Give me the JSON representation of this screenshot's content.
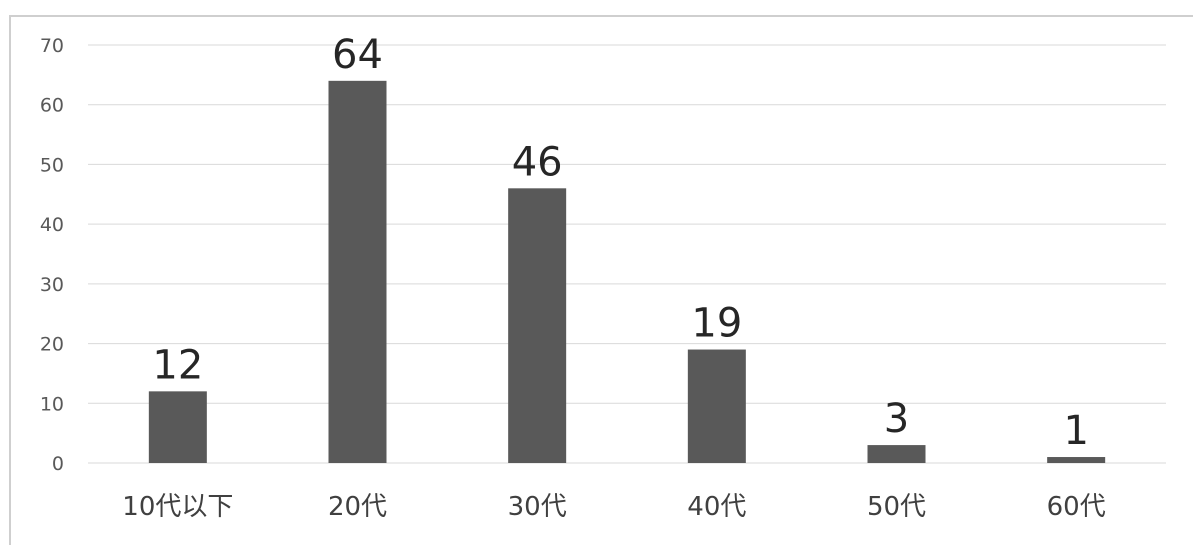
{
  "chart_data": {
    "type": "bar",
    "categories": [
      "10代以下",
      "20代",
      "30代",
      "40代",
      "50代",
      "60代"
    ],
    "values": [
      12,
      64,
      46,
      19,
      3,
      1
    ],
    "data_labels": [
      "12",
      "64",
      "46",
      "19",
      "3",
      "1"
    ],
    "title": "",
    "xlabel": "",
    "ylabel": "",
    "ylim": [
      0,
      70
    ],
    "yticks": [
      0,
      10,
      20,
      30,
      40,
      50,
      60,
      70
    ],
    "ytick_labels": [
      "0",
      "10",
      "20",
      "30",
      "40",
      "50",
      "60",
      "70"
    ],
    "grid": true,
    "legend": "none",
    "colors": {
      "bar": "#595959",
      "grid": "#d9d9d9"
    }
  }
}
